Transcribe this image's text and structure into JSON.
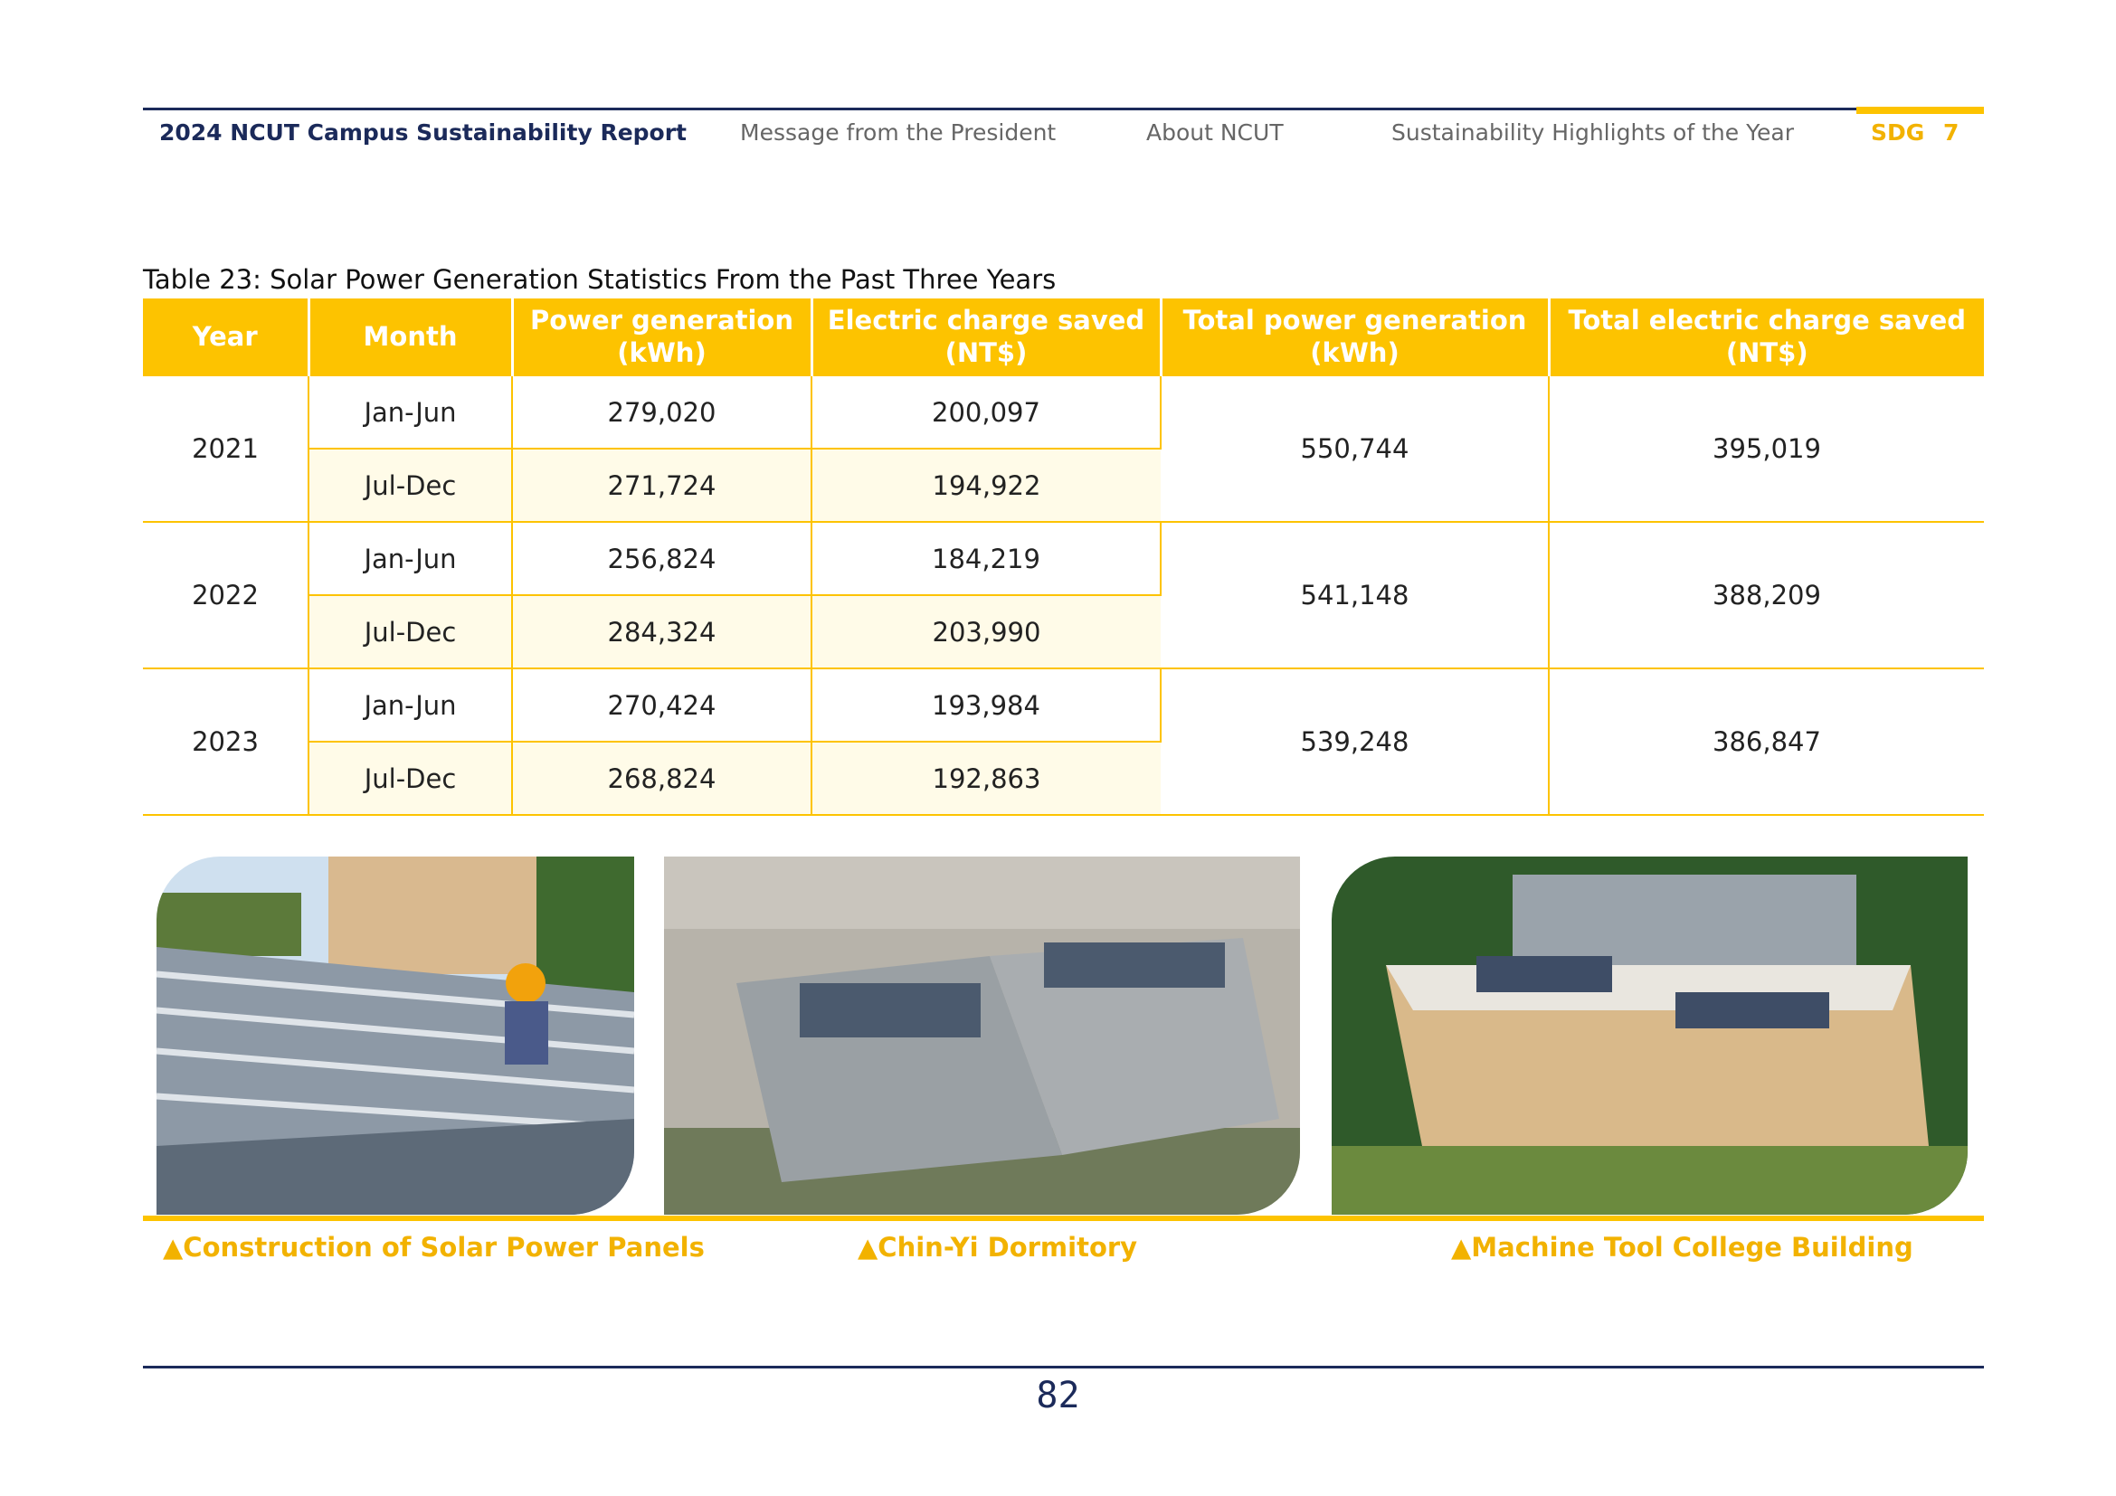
{
  "header": {
    "title": "2024 NCUT Campus Sustainability Report",
    "nav": [
      "Message from the President",
      "About NCUT",
      "Sustainability Highlights of the Year"
    ],
    "sdg": "SDG",
    "sdg_number": "7"
  },
  "table": {
    "caption": "Table 23: Solar Power Generation Statistics From the Past Three Years",
    "columns": [
      "Year",
      "Month",
      "Power generation\n(kWh)",
      "Electric charge saved\n(NT$)",
      "Total power generation\n(kWh)",
      "Total electric charge saved\n(NT$)"
    ],
    "rows": [
      {
        "year": "2021",
        "halves": [
          {
            "month": "Jan-Jun",
            "power": "279,020",
            "charge": "200,097"
          },
          {
            "month": "Jul-Dec",
            "power": "271,724",
            "charge": "194,922"
          }
        ],
        "total_power": "550,744",
        "total_charge": "395,019"
      },
      {
        "year": "2022",
        "halves": [
          {
            "month": "Jan-Jun",
            "power": "256,824",
            "charge": "184,219"
          },
          {
            "month": "Jul-Dec",
            "power": "284,324",
            "charge": "203,990"
          }
        ],
        "total_power": "541,148",
        "total_charge": "388,209"
      },
      {
        "year": "2023",
        "halves": [
          {
            "month": "Jan-Jun",
            "power": "270,424",
            "charge": "193,984"
          },
          {
            "month": "Jul-Dec",
            "power": "268,824",
            "charge": "192,863"
          }
        ],
        "total_power": "539,248",
        "total_charge": "386,847"
      }
    ]
  },
  "photos": [
    {
      "caption": "▲Construction of Solar Power Panels"
    },
    {
      "caption": "▲Chin-Yi Dormitory"
    },
    {
      "caption": "▲Machine Tool College Building"
    }
  ],
  "page_number": "82"
}
